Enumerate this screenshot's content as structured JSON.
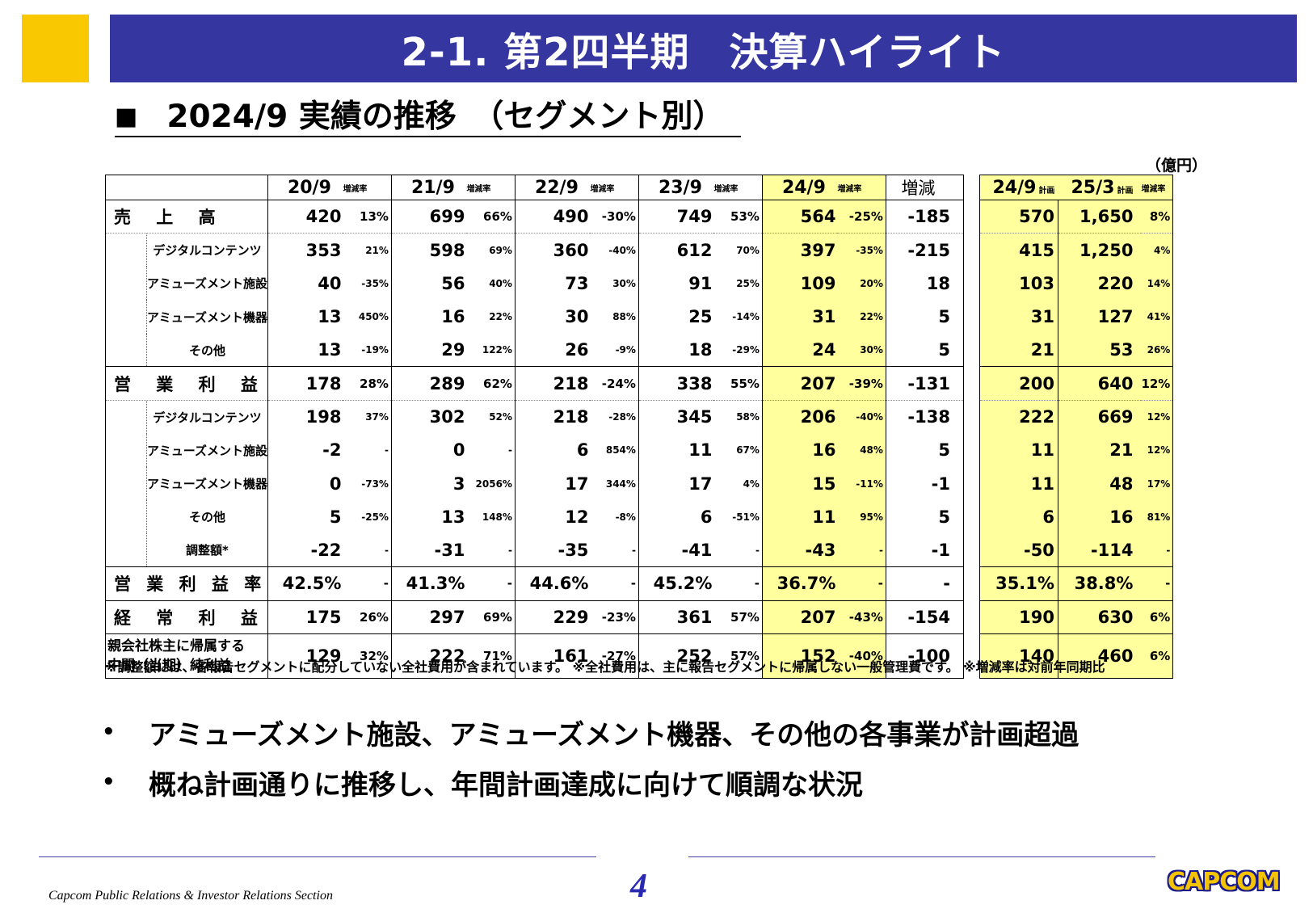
{
  "header": {
    "title": "2-1.  第2四半期　決算ハイライト"
  },
  "subtitle": {
    "marker": "■",
    "text": "2024/9 実績の推移　（セグメント別）"
  },
  "unit": "（億円）",
  "columns": {
    "periods": [
      "20/9",
      "21/9",
      "22/9",
      "23/9",
      "24/9"
    ],
    "rate": "増減率",
    "diff": "増減",
    "plan1": "24/9",
    "plan2": "25/3",
    "plan_small": "計画",
    "plan_rate": "増減率"
  },
  "rows": [
    {
      "label": "売 上 高",
      "c": [
        [
          "420",
          "13%"
        ],
        [
          "699",
          "66%"
        ],
        [
          "490",
          "-30%"
        ],
        [
          "749",
          "53%"
        ],
        [
          "564",
          "-25%"
        ]
      ],
      "diff": "-185",
      "p1": "570",
      "p2": "1,650",
      "pr": "8%"
    },
    {
      "label": "デジタルコンテンツ",
      "c": [
        [
          "353",
          "21%"
        ],
        [
          "598",
          "69%"
        ],
        [
          "360",
          "-40%"
        ],
        [
          "612",
          "70%"
        ],
        [
          "397",
          "-35%"
        ]
      ],
      "diff": "-215",
      "p1": "415",
      "p2": "1,250",
      "pr": "4%"
    },
    {
      "label": "アミューズメント施設",
      "c": [
        [
          "40",
          "-35%"
        ],
        [
          "56",
          "40%"
        ],
        [
          "73",
          "30%"
        ],
        [
          "91",
          "25%"
        ],
        [
          "109",
          "20%"
        ]
      ],
      "diff": "18",
      "p1": "103",
      "p2": "220",
      "pr": "14%"
    },
    {
      "label": "アミューズメント機器",
      "c": [
        [
          "13",
          "450%"
        ],
        [
          "16",
          "22%"
        ],
        [
          "30",
          "88%"
        ],
        [
          "25",
          "-14%"
        ],
        [
          "31",
          "22%"
        ]
      ],
      "diff": "5",
      "p1": "31",
      "p2": "127",
      "pr": "41%"
    },
    {
      "label": "その他",
      "c": [
        [
          "13",
          "-19%"
        ],
        [
          "29",
          "122%"
        ],
        [
          "26",
          "-9%"
        ],
        [
          "18",
          "-29%"
        ],
        [
          "24",
          "30%"
        ]
      ],
      "diff": "5",
      "p1": "21",
      "p2": "53",
      "pr": "26%"
    },
    {
      "label": "営 業 利 益",
      "c": [
        [
          "178",
          "28%"
        ],
        [
          "289",
          "62%"
        ],
        [
          "218",
          "-24%"
        ],
        [
          "338",
          "55%"
        ],
        [
          "207",
          "-39%"
        ]
      ],
      "diff": "-131",
      "p1": "200",
      "p2": "640",
      "pr": "12%"
    },
    {
      "label": "デジタルコンテンツ",
      "c": [
        [
          "198",
          "37%"
        ],
        [
          "302",
          "52%"
        ],
        [
          "218",
          "-28%"
        ],
        [
          "345",
          "58%"
        ],
        [
          "206",
          "-40%"
        ]
      ],
      "diff": "-138",
      "p1": "222",
      "p2": "669",
      "pr": "12%"
    },
    {
      "label": "アミューズメント施設",
      "c": [
        [
          "-2",
          "-"
        ],
        [
          "0",
          "-"
        ],
        [
          "6",
          "854%"
        ],
        [
          "11",
          "67%"
        ],
        [
          "16",
          "48%"
        ]
      ],
      "diff": "5",
      "p1": "11",
      "p2": "21",
      "pr": "12%"
    },
    {
      "label": "アミューズメント機器",
      "c": [
        [
          "0",
          "-73%"
        ],
        [
          "3",
          "2056%"
        ],
        [
          "17",
          "344%"
        ],
        [
          "17",
          "4%"
        ],
        [
          "15",
          "-11%"
        ]
      ],
      "diff": "-1",
      "p1": "11",
      "p2": "48",
      "pr": "17%"
    },
    {
      "label": "その他",
      "c": [
        [
          "5",
          "-25%"
        ],
        [
          "13",
          "148%"
        ],
        [
          "12",
          "-8%"
        ],
        [
          "6",
          "-51%"
        ],
        [
          "11",
          "95%"
        ]
      ],
      "diff": "5",
      "p1": "6",
      "p2": "16",
      "pr": "81%"
    },
    {
      "label": "調整額*",
      "c": [
        [
          "-22",
          "-"
        ],
        [
          "-31",
          "-"
        ],
        [
          "-35",
          "-"
        ],
        [
          "-41",
          "-"
        ],
        [
          "-43",
          "-"
        ]
      ],
      "diff": "-1",
      "p1": "-50",
      "p2": "-114",
      "pr": "-"
    },
    {
      "label": "営 業 利 益 率",
      "c": [
        [
          "42.5%",
          "-"
        ],
        [
          "41.3%",
          "-"
        ],
        [
          "44.6%",
          "-"
        ],
        [
          "45.2%",
          "-"
        ],
        [
          "36.7%",
          "-"
        ]
      ],
      "diff": "-",
      "p1": "35.1%",
      "p2": "38.8%",
      "pr": "-"
    },
    {
      "label": "経 常 利 益",
      "c": [
        [
          "175",
          "26%"
        ],
        [
          "297",
          "69%"
        ],
        [
          "229",
          "-23%"
        ],
        [
          "361",
          "57%"
        ],
        [
          "207",
          "-43%"
        ]
      ],
      "diff": "-154",
      "p1": "190",
      "p2": "630",
      "pr": "6%"
    },
    {
      "label": "親会社株主に帰属する",
      "label2": "中間（当期）純利益",
      "c": [
        [
          "129",
          "32%"
        ],
        [
          "222",
          "71%"
        ],
        [
          "161",
          "-27%"
        ],
        [
          "252",
          "57%"
        ],
        [
          "152",
          "-40%"
        ]
      ],
      "diff": "-100",
      "p1": "140",
      "p2": "460",
      "pr": "6%"
    }
  ],
  "footnote": "※調整額には、各報告セグメントに配分していない全社費用が含まれています。 ※全社費用は、主に報告セグメントに帰属しない一般管理費です。 ※増減率は対前年同期比",
  "bullets": [
    {
      "dot": "•",
      "text": "アミューズメント施設、アミューズメント機器、その他の各事業が計画超過"
    },
    {
      "dot": "•",
      "text": "概ね計画通りに推移し、年間計画達成に向けて順調な状況"
    }
  ],
  "footer": {
    "section": "Capcom Public Relations & Investor Relations Section",
    "page": "4",
    "logo": "CAPCOM"
  },
  "colors": {
    "title_bar": "#3636a0",
    "accent_square": "#f9c800",
    "highlight": "#ffff9e"
  }
}
